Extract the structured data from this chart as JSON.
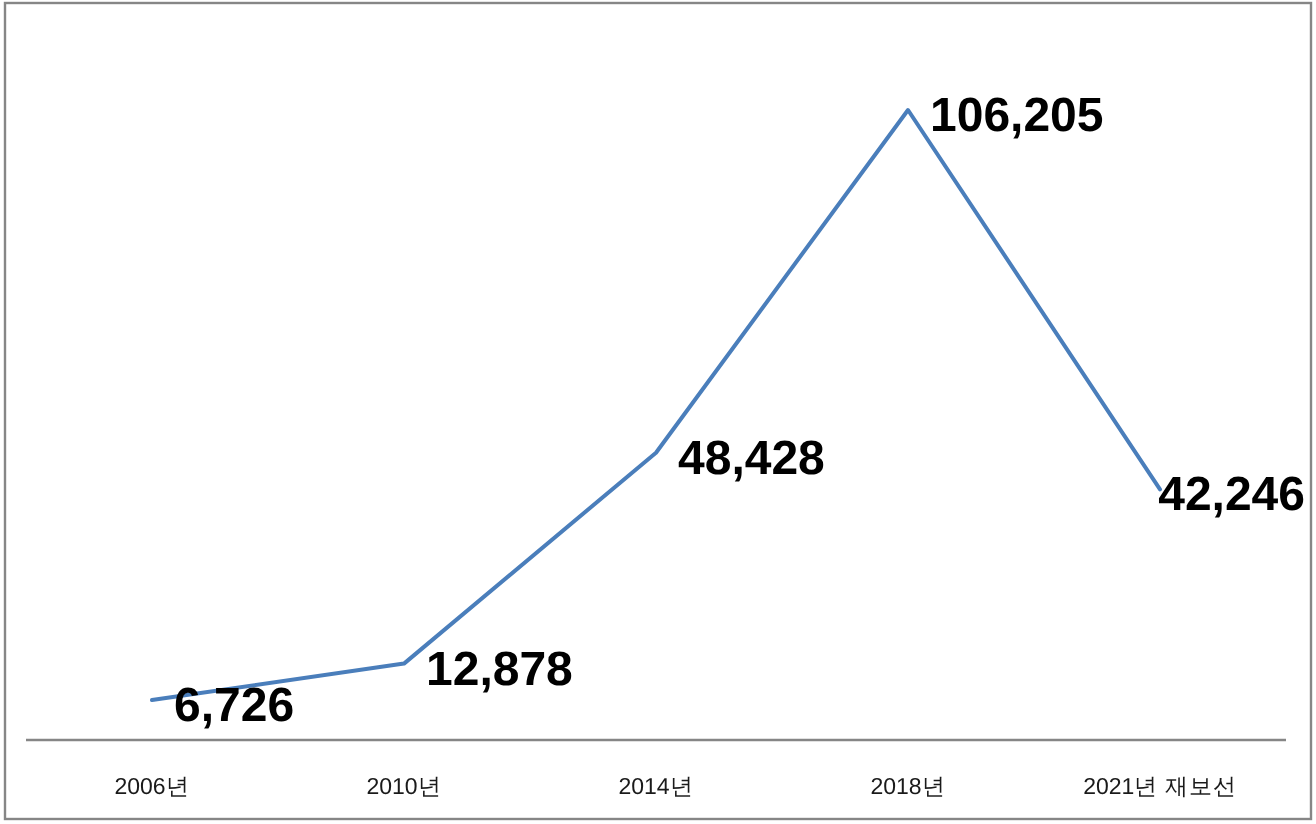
{
  "chart_data": {
    "type": "line",
    "categories": [
      "2006년",
      "2010년",
      "2014년",
      "2018년",
      "2021년 재보선"
    ],
    "values": [
      6726,
      12878,
      48428,
      106205,
      42246
    ],
    "value_labels": [
      "6,726",
      "12,878",
      "48,428",
      "106,205",
      "42,246"
    ],
    "color": "#4a7ebb",
    "tick_labels": "x"
  }
}
